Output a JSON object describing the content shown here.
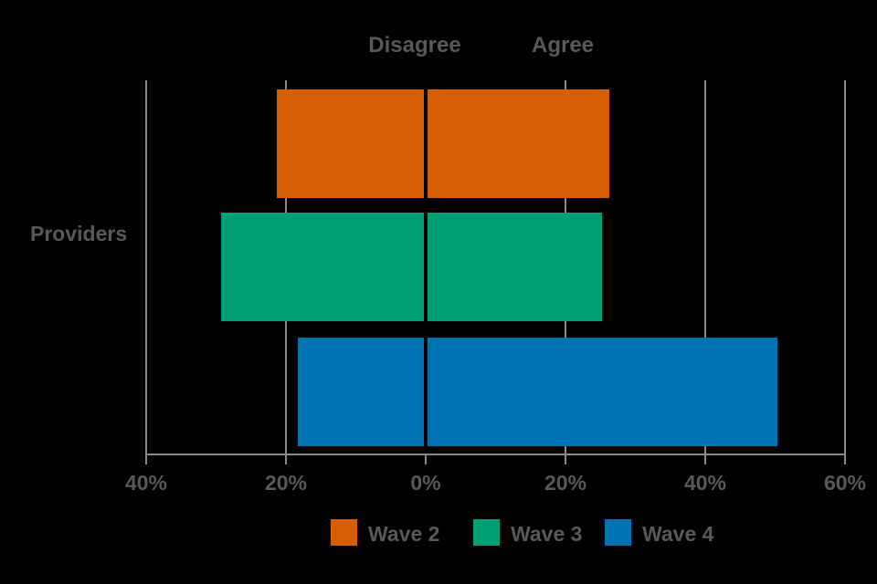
{
  "chart_data": {
    "type": "bar",
    "subtype": "diverging-horizontal",
    "category": "Providers",
    "column_headers": {
      "left": "Disagree",
      "right": "Agree"
    },
    "series": [
      {
        "name": "Wave 2",
        "color": "#D55E00",
        "disagree_pct": 21,
        "agree_pct": 26
      },
      {
        "name": "Wave 3",
        "color": "#009E73",
        "disagree_pct": 29,
        "agree_pct": 25
      },
      {
        "name": "Wave 4",
        "color": "#0072B2",
        "disagree_pct": 18,
        "agree_pct": 50
      }
    ],
    "x_axis": {
      "tick_values": [
        -40,
        -20,
        0,
        20,
        40,
        60
      ],
      "tick_labels": [
        "40%",
        "20%",
        "0%",
        "20%",
        "40%",
        "60%"
      ],
      "xlim": [
        -40,
        60
      ],
      "gridlines": true,
      "gridline_at_zero": false
    },
    "legend": {
      "position": "bottom",
      "items": [
        "Wave 2",
        "Wave 3",
        "Wave 4"
      ]
    }
  },
  "colors": {
    "background": "#000000",
    "text": "#595959",
    "grid": "#8A8A8A",
    "wave2": "#D55E00",
    "wave3": "#009E73",
    "wave4": "#0072B2"
  }
}
